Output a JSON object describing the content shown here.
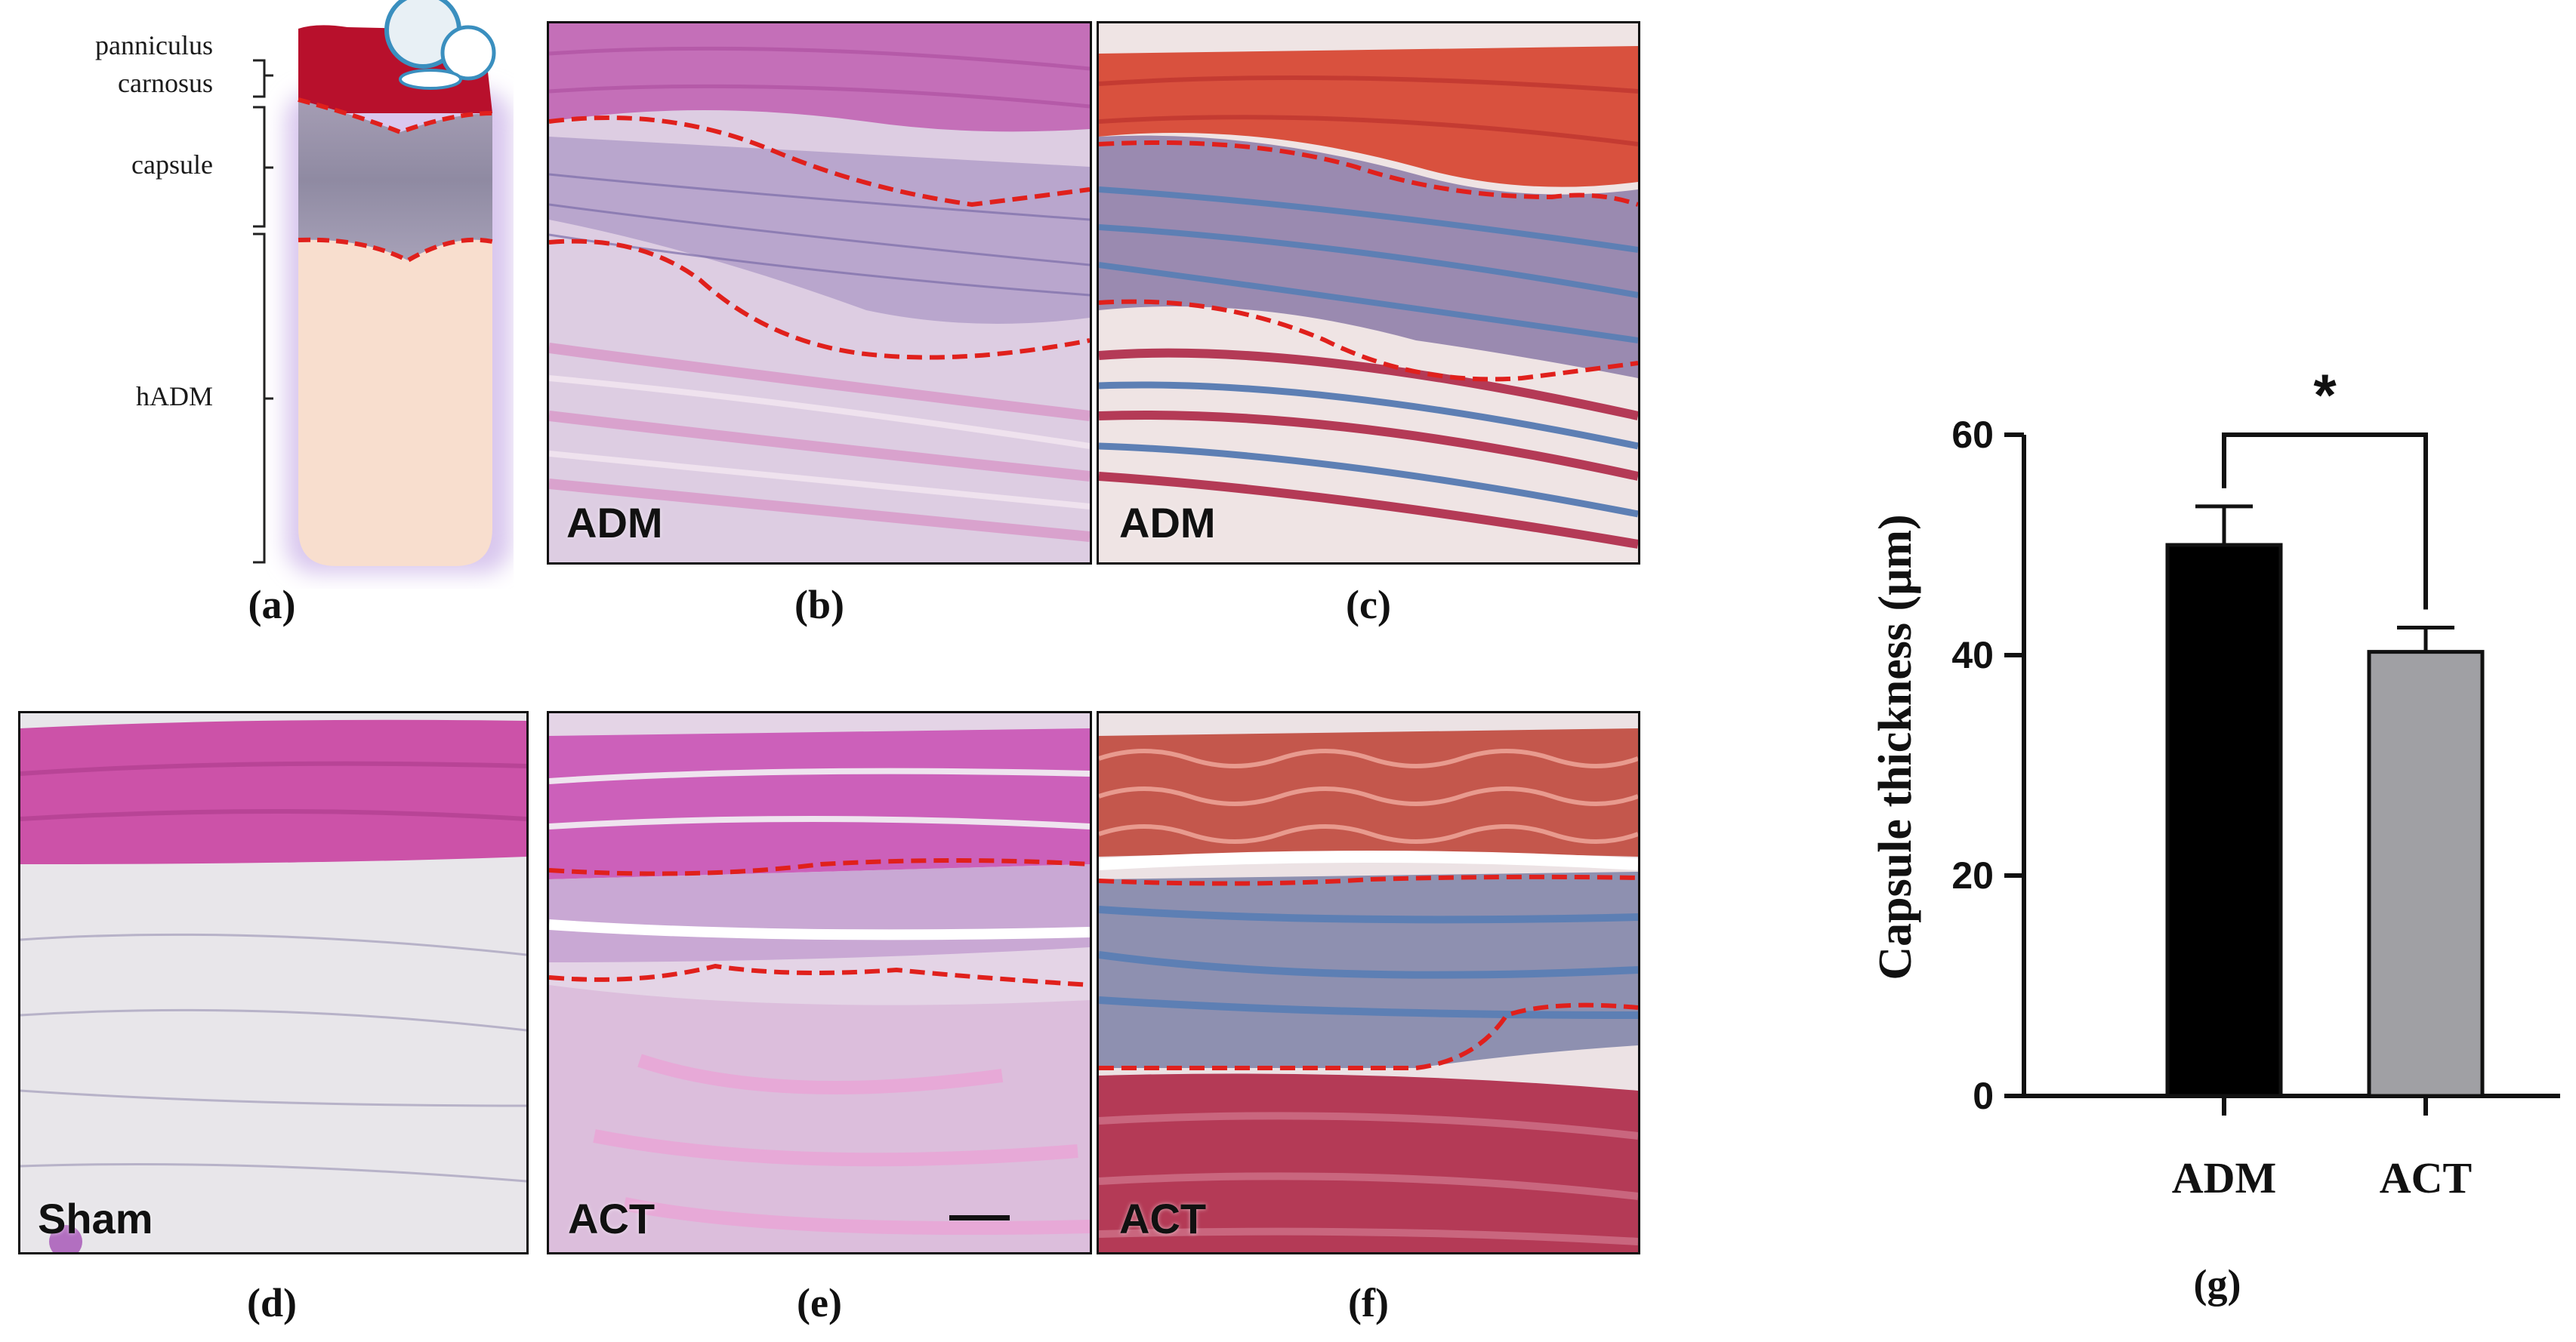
{
  "schematic": {
    "labels": {
      "panniculus_line1": "panniculus",
      "panniculus_line2": "carnosus",
      "capsule": "capsule",
      "hadm": "hADM"
    }
  },
  "panels": {
    "a": "(a)",
    "b": "(b)",
    "c": "(c)",
    "d": "(d)",
    "e": "(e)",
    "f": "(f)",
    "g": "(g)"
  },
  "image_labels": {
    "b": "ADM",
    "c": "ADM",
    "d": "Sham",
    "e": "ACT",
    "f": "ACT"
  },
  "colors": {
    "boundary_line": "#e0201c",
    "he_muscle": "#c866b4",
    "he_background": "#e6d4e4",
    "mt_muscle": "#d8524a",
    "mt_collagen": "#5d7fb4",
    "bar_adm": "#000000",
    "bar_act": "#a0a0a4"
  },
  "chart_data": {
    "type": "bar",
    "categories": [
      "ADM",
      "ACT"
    ],
    "values": [
      50.0,
      40.3
    ],
    "error": [
      3.5,
      2.2
    ],
    "ylabel": "Capsule thickness (μm)",
    "xlabel": "",
    "ylim": [
      0,
      60
    ],
    "yticks": [
      0,
      20,
      40,
      60
    ],
    "significance": {
      "between": [
        "ADM",
        "ACT"
      ],
      "label": "*"
    },
    "grid": false,
    "legend": "none"
  }
}
